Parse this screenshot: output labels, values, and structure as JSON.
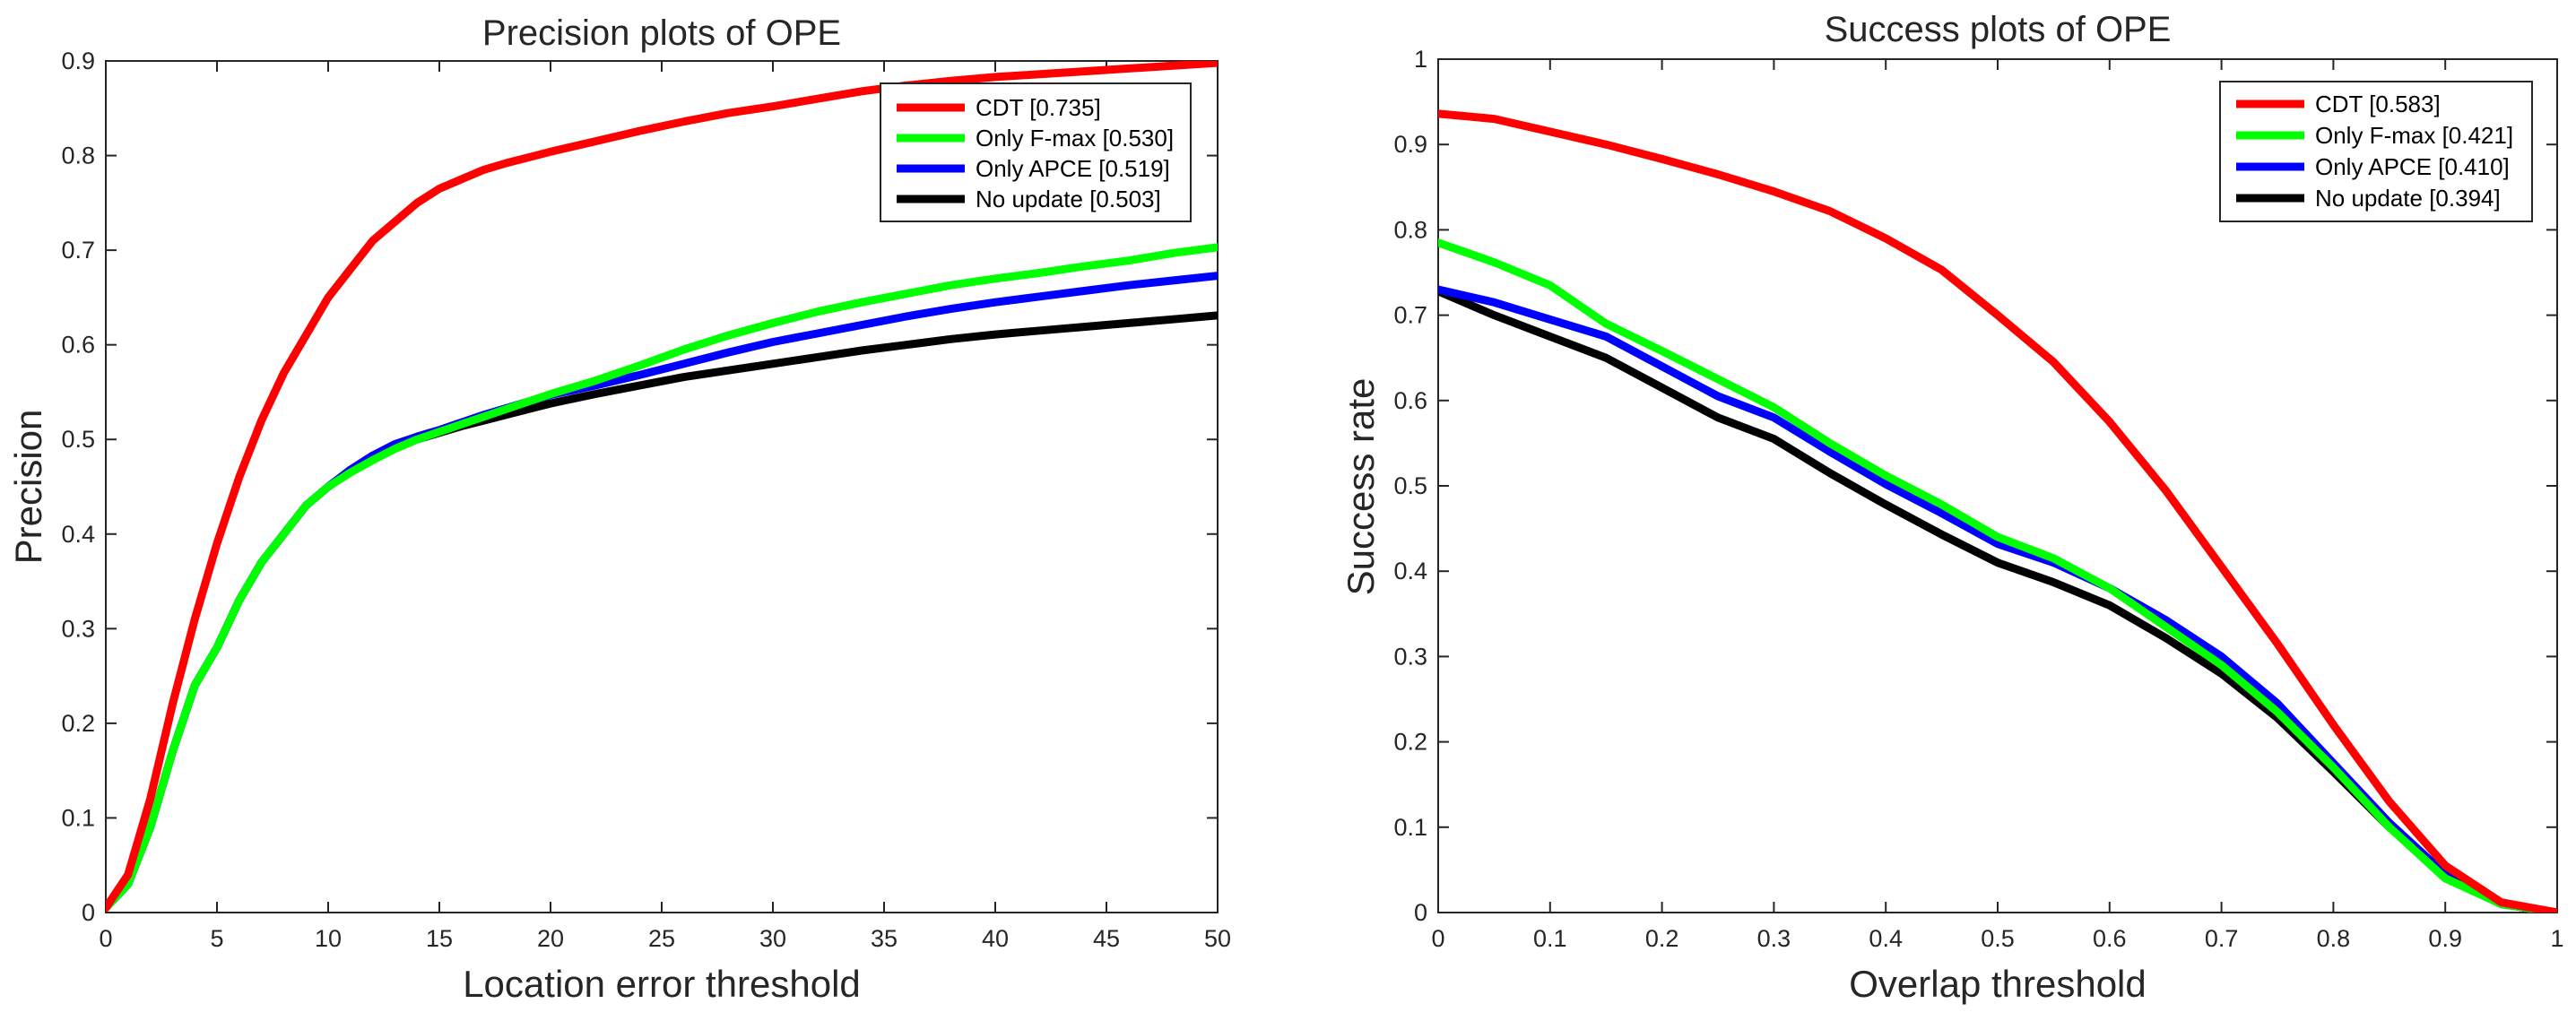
{
  "chart_data": [
    {
      "type": "line",
      "title": "Precision plots of OPE",
      "xlabel": "Location error threshold",
      "ylabel": "Precision",
      "xlim": [
        0,
        50
      ],
      "ylim": [
        0,
        0.9
      ],
      "xticks": [
        0,
        5,
        10,
        15,
        20,
        25,
        30,
        35,
        40,
        45,
        50
      ],
      "yticks": [
        0,
        0.1,
        0.2,
        0.3,
        0.4,
        0.5,
        0.6,
        0.7,
        0.8,
        0.9
      ],
      "grid": false,
      "legend_position": "top-right",
      "x": [
        0,
        1,
        2,
        3,
        4,
        5,
        6,
        7,
        8,
        9,
        10,
        11,
        12,
        13,
        14,
        15,
        16,
        17,
        18,
        19,
        20,
        22,
        24,
        26,
        28,
        30,
        32,
        34,
        36,
        38,
        40,
        42,
        44,
        46,
        48,
        50
      ],
      "series": [
        {
          "name": "CDT [0.735]",
          "color": "#ff0000",
          "values": [
            0.005,
            0.04,
            0.12,
            0.22,
            0.31,
            0.39,
            0.46,
            0.52,
            0.57,
            0.61,
            0.65,
            0.68,
            0.71,
            0.73,
            0.75,
            0.765,
            0.775,
            0.785,
            0.792,
            0.798,
            0.804,
            0.815,
            0.826,
            0.836,
            0.845,
            0.852,
            0.86,
            0.868,
            0.874,
            0.879,
            0.883,
            0.886,
            0.889,
            0.892,
            0.895,
            0.898
          ]
        },
        {
          "name": "Only F-max [0.530]",
          "color": "#00ff00",
          "values": [
            0.005,
            0.03,
            0.09,
            0.17,
            0.24,
            0.28,
            0.33,
            0.37,
            0.4,
            0.43,
            0.45,
            0.465,
            0.478,
            0.49,
            0.5,
            0.508,
            0.516,
            0.524,
            0.532,
            0.54,
            0.548,
            0.562,
            0.578,
            0.595,
            0.61,
            0.623,
            0.635,
            0.645,
            0.654,
            0.663,
            0.67,
            0.676,
            0.683,
            0.689,
            0.697,
            0.703
          ]
        },
        {
          "name": "Only APCE [0.519]",
          "color": "#0000ff",
          "values": [
            0.005,
            0.03,
            0.09,
            0.17,
            0.24,
            0.28,
            0.33,
            0.37,
            0.4,
            0.43,
            0.45,
            0.468,
            0.483,
            0.495,
            0.503,
            0.51,
            0.518,
            0.526,
            0.533,
            0.54,
            0.547,
            0.557,
            0.568,
            0.58,
            0.592,
            0.603,
            0.612,
            0.621,
            0.63,
            0.638,
            0.645,
            0.651,
            0.657,
            0.663,
            0.668,
            0.673
          ]
        },
        {
          "name": "No update [0.503]",
          "color": "#000000",
          "values": [
            0.005,
            0.03,
            0.09,
            0.17,
            0.24,
            0.28,
            0.33,
            0.37,
            0.4,
            0.43,
            0.45,
            0.466,
            0.48,
            0.492,
            0.5,
            0.507,
            0.514,
            0.52,
            0.526,
            0.532,
            0.538,
            0.548,
            0.557,
            0.566,
            0.573,
            0.58,
            0.587,
            0.594,
            0.6,
            0.606,
            0.611,
            0.615,
            0.619,
            0.623,
            0.627,
            0.631
          ]
        }
      ]
    },
    {
      "type": "line",
      "title": "Success plots of OPE",
      "xlabel": "Overlap threshold",
      "ylabel": "Success rate",
      "xlim": [
        0,
        1
      ],
      "ylim": [
        0,
        1
      ],
      "xticks": [
        0,
        0.1,
        0.2,
        0.3,
        0.4,
        0.5,
        0.6,
        0.7,
        0.8,
        0.9,
        1
      ],
      "yticks": [
        0,
        0.1,
        0.2,
        0.3,
        0.4,
        0.5,
        0.6,
        0.7,
        0.8,
        0.9,
        1
      ],
      "grid": false,
      "legend_position": "top-right",
      "x": [
        0,
        0.05,
        0.1,
        0.15,
        0.2,
        0.25,
        0.3,
        0.35,
        0.4,
        0.45,
        0.5,
        0.55,
        0.6,
        0.65,
        0.7,
        0.75,
        0.8,
        0.85,
        0.9,
        0.95,
        1
      ],
      "series": [
        {
          "name": "CDT [0.583]",
          "color": "#ff0000",
          "values": [
            0.936,
            0.93,
            0.915,
            0.9,
            0.883,
            0.865,
            0.845,
            0.822,
            0.79,
            0.753,
            0.7,
            0.645,
            0.575,
            0.495,
            0.405,
            0.315,
            0.22,
            0.13,
            0.055,
            0.012,
            0.0
          ]
        },
        {
          "name": "Only F-max [0.421]",
          "color": "#00ff00",
          "values": [
            0.785,
            0.762,
            0.735,
            0.69,
            0.658,
            0.625,
            0.592,
            0.55,
            0.512,
            0.478,
            0.44,
            0.415,
            0.38,
            0.335,
            0.29,
            0.235,
            0.17,
            0.1,
            0.04,
            0.01,
            0.0
          ]
        },
        {
          "name": "Only APCE [0.410]",
          "color": "#0000ff",
          "values": [
            0.73,
            0.715,
            0.695,
            0.675,
            0.64,
            0.605,
            0.58,
            0.54,
            0.502,
            0.468,
            0.432,
            0.41,
            0.38,
            0.343,
            0.3,
            0.245,
            0.175,
            0.105,
            0.045,
            0.01,
            0.0
          ]
        },
        {
          "name": "No update [0.394]",
          "color": "#000000",
          "values": [
            0.728,
            0.7,
            0.675,
            0.65,
            0.615,
            0.58,
            0.555,
            0.515,
            0.478,
            0.443,
            0.41,
            0.387,
            0.36,
            0.322,
            0.28,
            0.228,
            0.165,
            0.1,
            0.045,
            0.01,
            0.0
          ]
        }
      ]
    }
  ]
}
